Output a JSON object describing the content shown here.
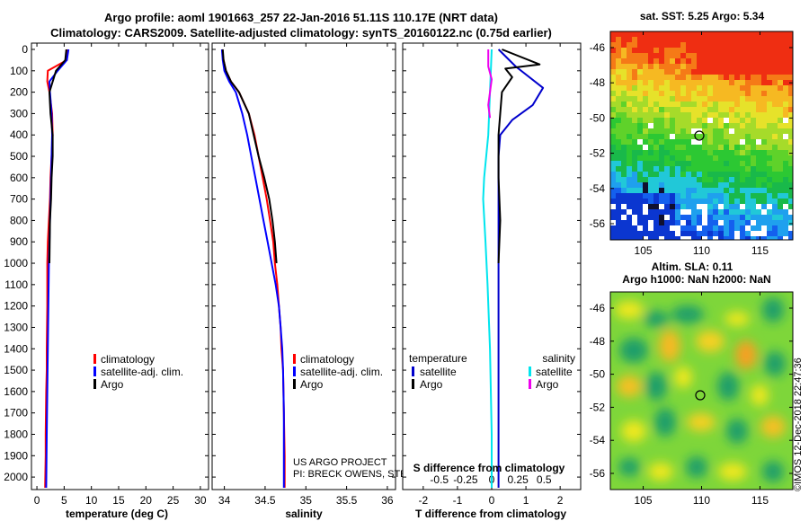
{
  "title_line1": "Argo profile: aoml 1901663_257 22-Jan-2016 51.11S 110.17E (NRT data)",
  "title_line2": "Climatology: CARS2009. Satellite-adjusted climatology: synTS_20160122.nc (0.75d earlier)",
  "depth_ticks": [
    "0",
    "100",
    "200",
    "300",
    "400",
    "500",
    "600",
    "700",
    "800",
    "900",
    "1000",
    "1100",
    "1200",
    "1300",
    "1400",
    "1500",
    "1600",
    "1700",
    "1800",
    "1900",
    "2000"
  ],
  "panel1": {
    "xlabel": "temperature (deg C)",
    "ticks": [
      "0",
      "5",
      "10",
      "15",
      "20",
      "25",
      "30"
    ],
    "legend": [
      "climatology",
      "satellite-adj. clim.",
      "Argo"
    ]
  },
  "panel2": {
    "xlabel": "salinity",
    "ticks": [
      "34",
      "34.5",
      "35",
      "35.5",
      "36"
    ],
    "legend": [
      "climatology",
      "satellite-adj. clim.",
      "Argo"
    ],
    "credit1": "US ARGO PROJECT",
    "credit2": "PI: BRECK OWENS, STEVE JAYNE, P. ROBBINS"
  },
  "panel3": {
    "xlabel": "T difference from climatology",
    "top_label": "S difference from climatology",
    "t_ticks": [
      "-2",
      "-1",
      "0",
      "1",
      "2"
    ],
    "s_ticks": [
      "-0.5",
      "-0.25",
      "0",
      "0.25",
      "0.5"
    ],
    "legend_t_title": "temperature",
    "legend_s_title": "salinity",
    "legend_t": [
      "satellite",
      "Argo"
    ],
    "legend_s": [
      "satellite",
      "Argo"
    ]
  },
  "map1": {
    "title": "sat. SST: 5.25 Argo: 5.34",
    "lat_ticks": [
      "-46",
      "-48",
      "-50",
      "-52",
      "-54",
      "-56"
    ],
    "lon_ticks": [
      "105",
      "110",
      "115"
    ]
  },
  "map2": {
    "title1": "Altim. SLA: 0.11",
    "title2": "Argo h1000: NaN h2000: NaN",
    "lat_ticks": [
      "-46",
      "-48",
      "-50",
      "-52",
      "-54",
      "-56"
    ],
    "lon_ticks": [
      "105",
      "110",
      "115"
    ]
  },
  "footer": "©IMOS 12-Dec-2018 22:47:36",
  "colors": {
    "climatology": "#ff0000",
    "satellite": "#0000ff",
    "argo": "#000000",
    "sat_t": "#0000cc",
    "sat_s": "#00e5ee",
    "argo_s": "#ee00ee"
  },
  "chart_data": [
    {
      "type": "line",
      "title": "temperature profile",
      "xlabel": "temperature (deg C)",
      "ylabel": "depth",
      "xlim": [
        -1,
        31.5
      ],
      "ylim": [
        2050,
        0
      ],
      "series": [
        {
          "name": "climatology",
          "x": [
            5.6,
            5.5,
            2.0,
            1.9,
            2.3,
            2.8,
            2.9,
            2.7,
            2.5,
            2.4,
            2.2,
            2.0,
            1.9,
            1.9,
            1.8,
            1.8,
            1.7,
            1.6,
            1.6,
            1.5
          ],
          "y": [
            0,
            50,
            100,
            150,
            200,
            300,
            400,
            500,
            600,
            700,
            800,
            900,
            1000,
            1200,
            1400,
            1500,
            1600,
            1800,
            1900,
            2050
          ]
        },
        {
          "name": "satellite-adj. clim.",
          "x": [
            5.8,
            5.5,
            3.8,
            2.3,
            2.4,
            2.7,
            2.8,
            2.7,
            2.6,
            2.5,
            2.4,
            2.3,
            2.2,
            2.1,
            2.0,
            1.9,
            1.8,
            1.7
          ],
          "y": [
            0,
            50,
            100,
            150,
            200,
            300,
            400,
            500,
            600,
            700,
            800,
            900,
            1000,
            1200,
            1400,
            1600,
            1800,
            2050
          ]
        },
        {
          "name": "Argo",
          "x": [
            5.4,
            5.2,
            3.5,
            2.3,
            2.5,
            2.9,
            2.9,
            2.7,
            2.6,
            2.4,
            2.3
          ],
          "y": [
            0,
            50,
            100,
            200,
            300,
            400,
            500,
            600,
            700,
            800,
            1000
          ]
        }
      ]
    },
    {
      "type": "line",
      "title": "salinity profile",
      "xlabel": "salinity",
      "ylabel": "depth",
      "xlim": [
        33.85,
        36.1
      ],
      "ylim": [
        2050,
        0
      ],
      "series": [
        {
          "name": "climatology",
          "x": [
            33.97,
            33.99,
            34.02,
            34.08,
            34.18,
            34.3,
            34.37,
            34.42,
            34.47,
            34.52,
            34.56,
            34.6,
            34.62,
            34.65,
            34.67,
            34.69,
            34.7,
            34.72,
            34.73,
            34.74,
            34.74
          ],
          "y": [
            0,
            50,
            100,
            150,
            200,
            300,
            400,
            500,
            600,
            700,
            800,
            900,
            1000,
            1100,
            1200,
            1300,
            1400,
            1500,
            1700,
            1900,
            2050
          ]
        },
        {
          "name": "satellite-adj. clim.",
          "x": [
            33.97,
            33.98,
            34.0,
            34.06,
            34.14,
            34.22,
            34.28,
            34.33,
            34.38,
            34.43,
            34.48,
            34.53,
            34.58,
            34.63,
            34.67,
            34.69,
            34.71,
            34.72,
            34.73,
            34.73
          ],
          "y": [
            0,
            50,
            100,
            150,
            200,
            300,
            400,
            500,
            600,
            700,
            800,
            900,
            1000,
            1100,
            1200,
            1300,
            1400,
            1500,
            1700,
            2050
          ]
        },
        {
          "name": "Argo",
          "x": [
            33.98,
            33.99,
            34.02,
            34.08,
            34.18,
            34.3,
            34.36,
            34.42,
            34.49,
            34.55,
            34.59,
            34.62,
            34.64
          ],
          "y": [
            0,
            50,
            100,
            150,
            200,
            300,
            400,
            500,
            600,
            700,
            800,
            900,
            1000
          ]
        }
      ]
    },
    {
      "type": "line",
      "title": "differences from climatology",
      "xlabel": "T difference from climatology",
      "ylabel": "depth",
      "xlim": [
        -2.6,
        2.6
      ],
      "ylim": [
        2050,
        0
      ],
      "series": [
        {
          "name": "temperature satellite",
          "x": [
            0.2,
            0.7,
            1.5,
            1.2,
            0.6,
            0.25,
            0.2,
            0.2,
            0.2,
            0.2,
            0.2,
            0.2,
            0.2,
            0.2,
            0.2,
            0.2
          ],
          "y": [
            0,
            80,
            180,
            260,
            330,
            400,
            500,
            600,
            800,
            1000,
            1200,
            1400,
            1600,
            1800,
            1900,
            2050
          ]
        },
        {
          "name": "temperature Argo",
          "x": [
            0.3,
            1.4,
            0.4,
            0.6,
            0.3,
            0.25,
            0.2,
            0.2,
            0.25,
            0.2
          ],
          "y": [
            0,
            70,
            90,
            130,
            200,
            300,
            400,
            600,
            800,
            1000
          ]
        },
        {
          "name": "salinity satellite",
          "x": [
            0.0,
            -0.1,
            -0.22,
            -0.25,
            -0.18,
            -0.12,
            -0.05,
            0.0,
            0.0
          ],
          "y": [
            0,
            400,
            600,
            700,
            900,
            1100,
            1400,
            1800,
            2050
          ]
        },
        {
          "name": "salinity Argo",
          "x": [
            -0.1,
            -0.1,
            0.0,
            -0.05,
            -0.1,
            -0.05
          ],
          "y": [
            0,
            80,
            140,
            200,
            260,
            320
          ]
        }
      ]
    }
  ]
}
